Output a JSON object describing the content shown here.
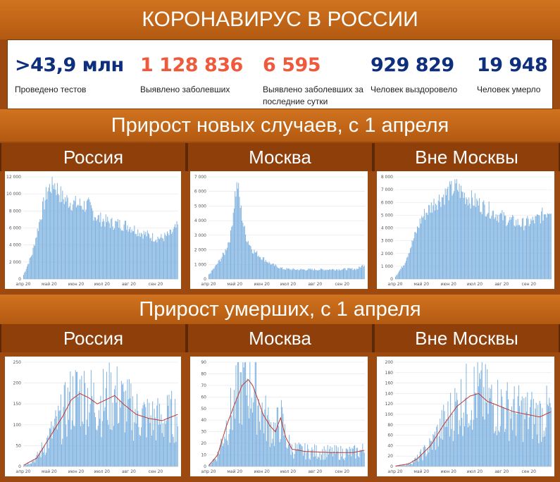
{
  "title": "КОРОНАВИРУС В РОССИИ",
  "stats": [
    {
      "value": ">43,9 млн",
      "label": "Проведено тестов",
      "color": "#0d2f7d"
    },
    {
      "value": "1 128 836",
      "label": "Выявлено заболевших",
      "color": "#ee5a3b"
    },
    {
      "value": "6 595",
      "label": "Выявлено заболевших за последние сутки",
      "color": "#ee5a3b"
    },
    {
      "value": "929 829",
      "label": "Человек выздоровело",
      "color": "#0d2f7d"
    },
    {
      "value": "19 948",
      "label": "Человек умерло",
      "color": "#0d2f7d"
    }
  ],
  "section_cases": {
    "title": "Прирост новых случаев, с 1 апреля"
  },
  "section_deaths": {
    "title": "Прирост умерших, с 1 апреля"
  },
  "regions": [
    "Россия",
    "Москва",
    "Вне Москвы"
  ],
  "chart_data": [
    {
      "type": "bar",
      "group": "cases",
      "region": "Россия",
      "x_ticks": [
        "апр 20",
        "май 20",
        "июн 20",
        "июл 20",
        "авг 20",
        "сен 20"
      ],
      "y_ticks": [
        0,
        2000,
        4000,
        6000,
        8000,
        10000,
        12000
      ],
      "ylim": [
        0,
        12000
      ],
      "profile": [
        [
          0,
          500
        ],
        [
          10,
          3000
        ],
        [
          20,
          7500
        ],
        [
          28,
          10500
        ],
        [
          35,
          11300
        ],
        [
          45,
          9500
        ],
        [
          60,
          8800
        ],
        [
          75,
          8600
        ],
        [
          85,
          7200
        ],
        [
          100,
          6600
        ],
        [
          120,
          6300
        ],
        [
          135,
          5500
        ],
        [
          150,
          4900
        ],
        [
          160,
          4800
        ],
        [
          170,
          5300
        ],
        [
          178,
          6200
        ]
      ]
    },
    {
      "type": "bar",
      "group": "cases",
      "region": "Москва",
      "x_ticks": [
        "апр 20",
        "май 20",
        "июн 20",
        "июл 20",
        "авг 20",
        "сен 20"
      ],
      "y_ticks": [
        0,
        1000,
        2000,
        3000,
        4000,
        5000,
        6000,
        7000
      ],
      "ylim": [
        0,
        7000
      ],
      "profile": [
        [
          0,
          300
        ],
        [
          8,
          900
        ],
        [
          18,
          1800
        ],
        [
          25,
          3000
        ],
        [
          30,
          5800
        ],
        [
          33,
          6500
        ],
        [
          36,
          5000
        ],
        [
          42,
          3000
        ],
        [
          50,
          2000
        ],
        [
          60,
          1500
        ],
        [
          72,
          1000
        ],
        [
          85,
          700
        ],
        [
          100,
          650
        ],
        [
          130,
          650
        ],
        [
          160,
          680
        ],
        [
          170,
          700
        ],
        [
          178,
          1000
        ]
      ]
    },
    {
      "type": "bar",
      "group": "cases",
      "region": "Вне Москвы",
      "x_ticks": [
        "апр 20",
        "май 20",
        "июн 20",
        "июл 20",
        "авг 20",
        "сен 20"
      ],
      "y_ticks": [
        0,
        1000,
        2000,
        3000,
        4000,
        5000,
        6000,
        7000,
        8000
      ],
      "ylim": [
        0,
        8000
      ],
      "profile": [
        [
          0,
          200
        ],
        [
          10,
          1200
        ],
        [
          20,
          3000
        ],
        [
          30,
          4800
        ],
        [
          45,
          6000
        ],
        [
          60,
          6800
        ],
        [
          70,
          7200
        ],
        [
          78,
          6600
        ],
        [
          95,
          5900
        ],
        [
          115,
          5100
        ],
        [
          130,
          4600
        ],
        [
          145,
          4300
        ],
        [
          160,
          4600
        ],
        [
          172,
          5200
        ],
        [
          178,
          5600
        ]
      ]
    },
    {
      "type": "bar",
      "group": "deaths",
      "region": "Россия",
      "x_ticks": [
        "апр 20",
        "май 20",
        "июн 20",
        "июл 20",
        "авг 20",
        "сен 20"
      ],
      "y_ticks": [
        0,
        50,
        100,
        150,
        200,
        250
      ],
      "ylim": [
        0,
        250
      ],
      "profile": [
        [
          0,
          3
        ],
        [
          15,
          20
        ],
        [
          30,
          70
        ],
        [
          45,
          120
        ],
        [
          55,
          160
        ],
        [
          65,
          175
        ],
        [
          75,
          165
        ],
        [
          85,
          150
        ],
        [
          95,
          160
        ],
        [
          105,
          170
        ],
        [
          115,
          150
        ],
        [
          130,
          125
        ],
        [
          145,
          115
        ],
        [
          160,
          110
        ],
        [
          172,
          120
        ],
        [
          178,
          125
        ]
      ]
    },
    {
      "type": "bar",
      "group": "deaths",
      "region": "Москва",
      "x_ticks": [
        "апр 20",
        "май 20",
        "июн 20",
        "июл 20",
        "авг 20",
        "сен 20"
      ],
      "y_ticks": [
        0,
        10,
        20,
        30,
        40,
        50,
        60,
        70,
        80,
        90
      ],
      "ylim": [
        0,
        90
      ],
      "profile": [
        [
          0,
          1
        ],
        [
          10,
          10
        ],
        [
          20,
          35
        ],
        [
          30,
          55
        ],
        [
          38,
          70
        ],
        [
          45,
          75
        ],
        [
          50,
          70
        ],
        [
          55,
          60
        ],
        [
          62,
          45
        ],
        [
          70,
          35
        ],
        [
          76,
          30
        ],
        [
          82,
          42
        ],
        [
          88,
          25
        ],
        [
          95,
          15
        ],
        [
          110,
          13
        ],
        [
          140,
          12
        ],
        [
          165,
          12
        ],
        [
          178,
          14
        ]
      ]
    },
    {
      "type": "bar",
      "group": "deaths",
      "region": "Вне Москвы",
      "x_ticks": [
        "апр 20",
        "май 20",
        "июн 20",
        "июл 20",
        "авг 20",
        "сен 20"
      ],
      "y_ticks": [
        0,
        20,
        40,
        60,
        80,
        100,
        120,
        140,
        160,
        180,
        200
      ],
      "ylim": [
        0,
        200
      ],
      "profile": [
        [
          0,
          1
        ],
        [
          15,
          5
        ],
        [
          25,
          15
        ],
        [
          40,
          40
        ],
        [
          55,
          80
        ],
        [
          70,
          115
        ],
        [
          85,
          135
        ],
        [
          95,
          140
        ],
        [
          105,
          125
        ],
        [
          120,
          115
        ],
        [
          135,
          105
        ],
        [
          150,
          100
        ],
        [
          165,
          95
        ],
        [
          178,
          105
        ]
      ]
    }
  ]
}
